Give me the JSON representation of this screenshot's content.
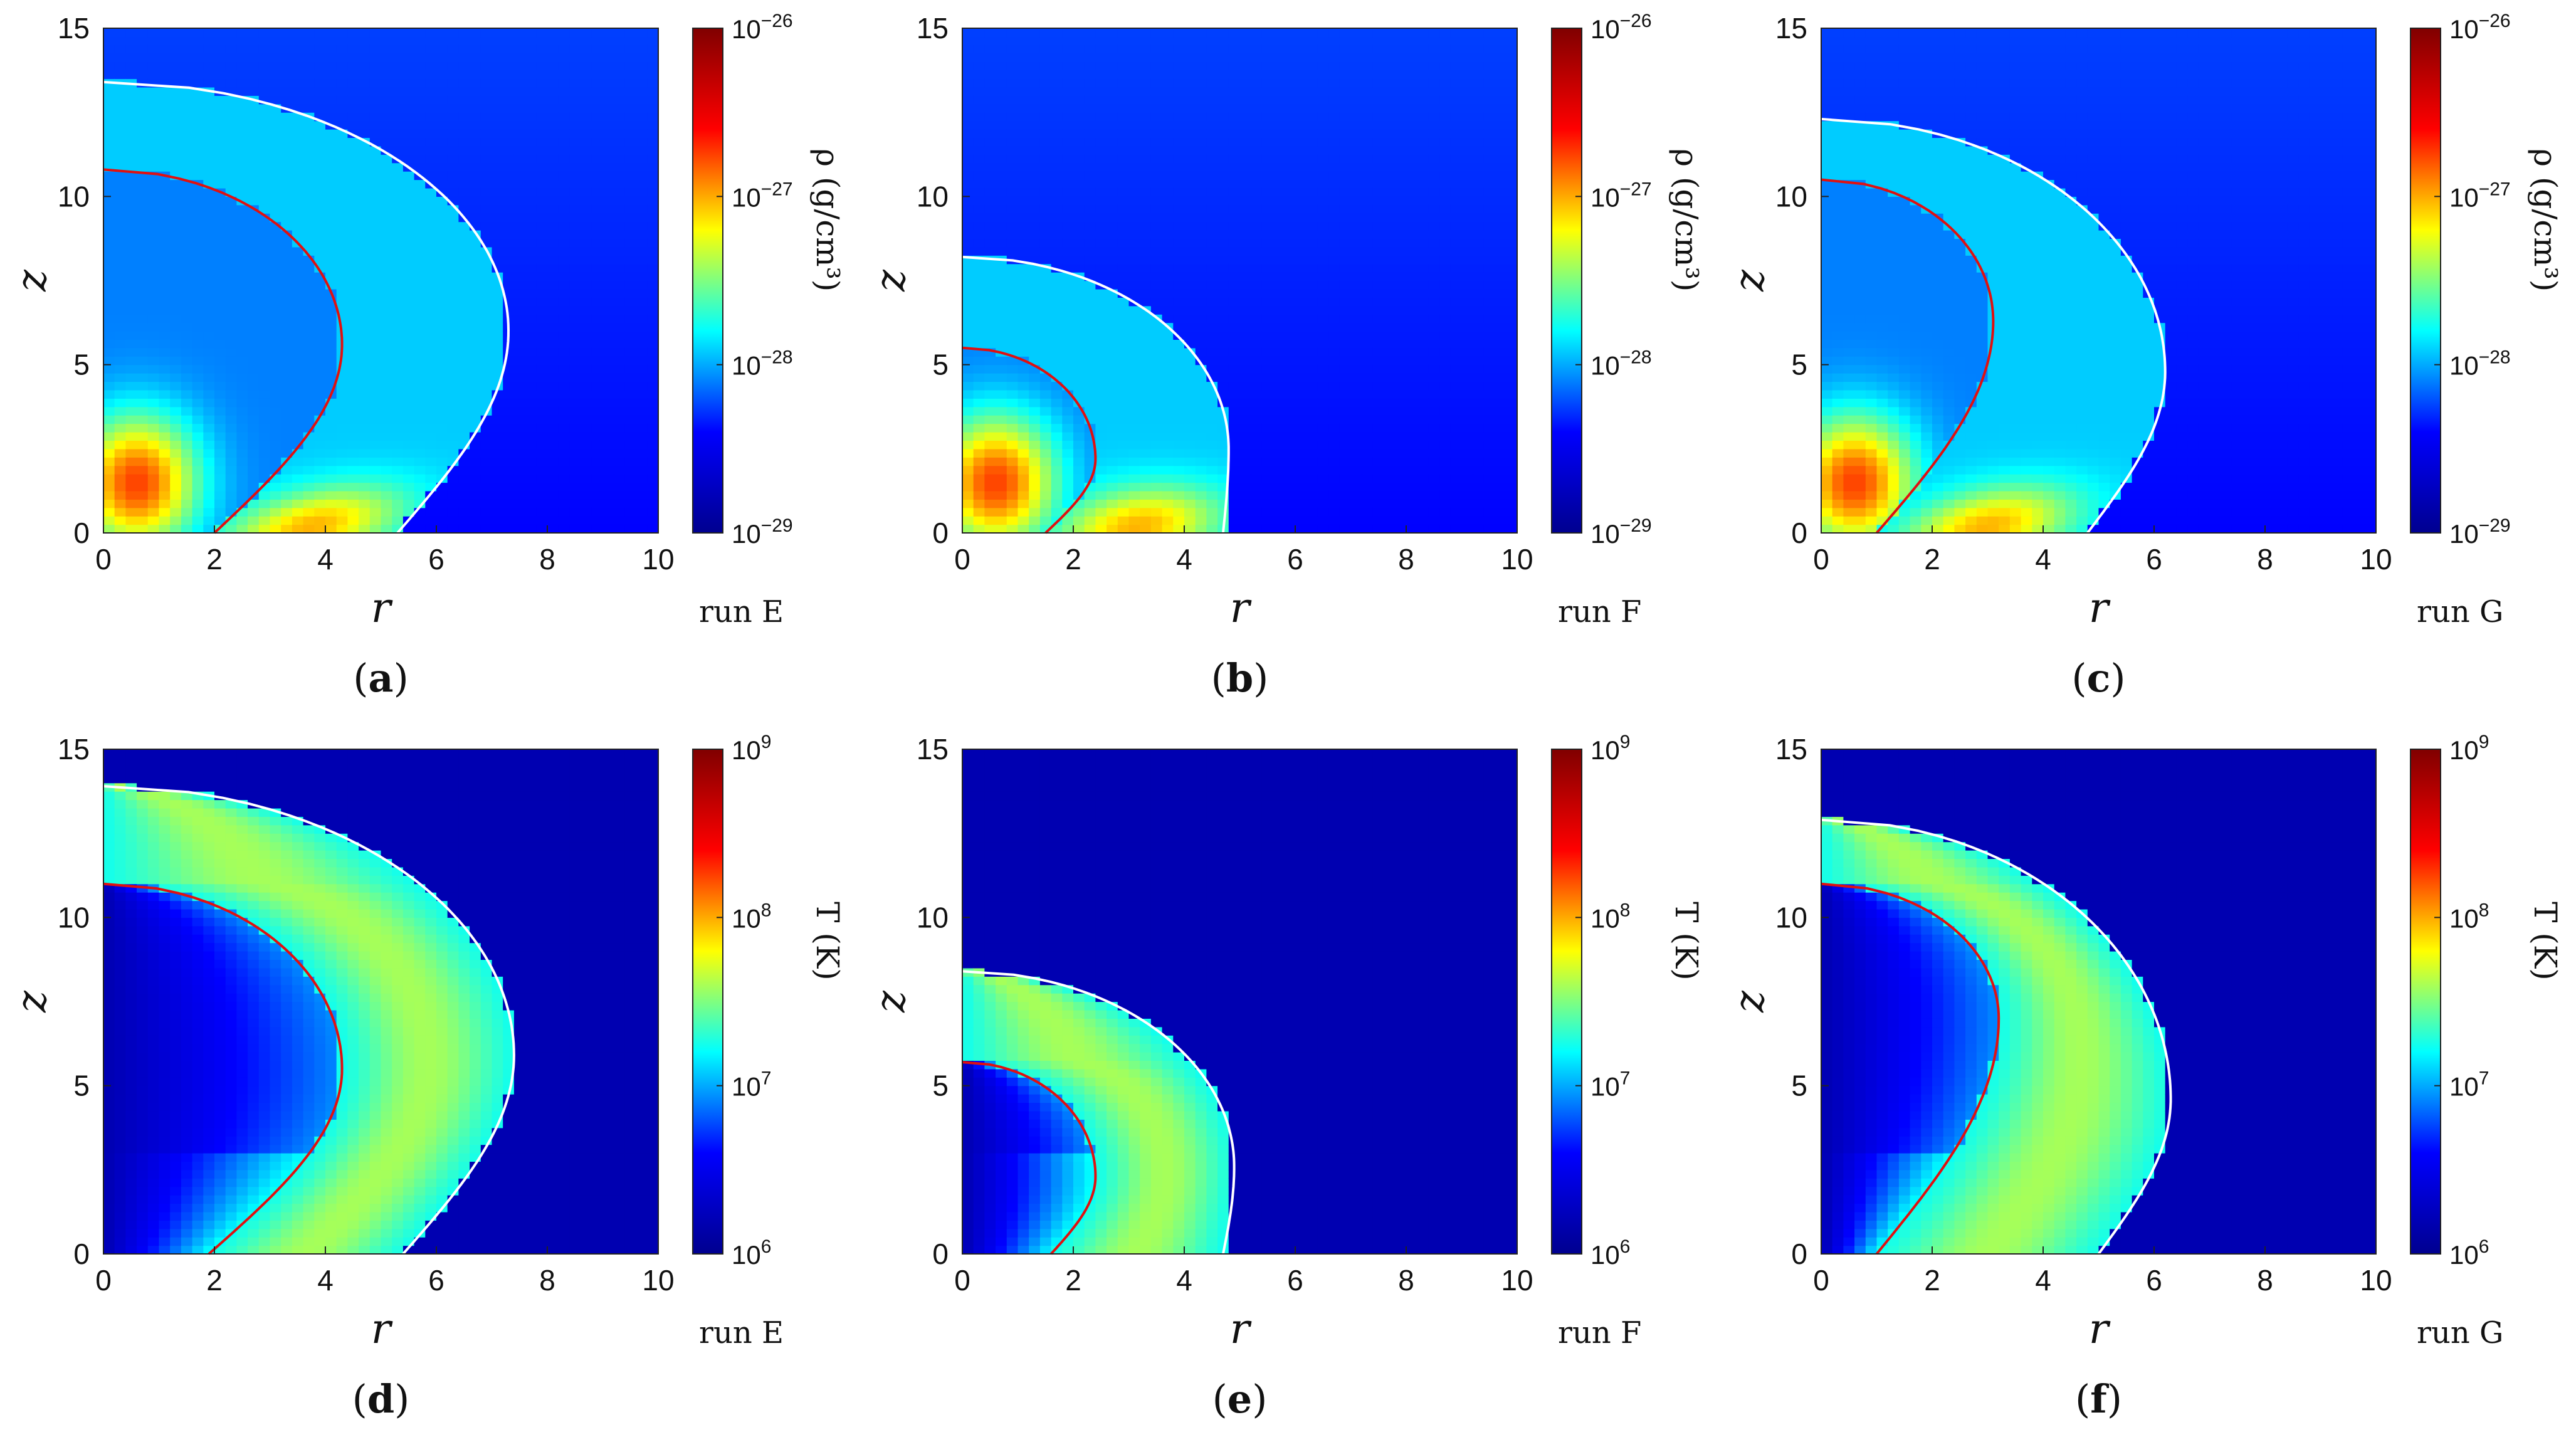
{
  "chart_data": [
    {
      "id": "a",
      "type": "heatmap",
      "caption": "a",
      "run_label": "run E",
      "quantity": "rho",
      "colorbar_label": "ρ (g/cm³)",
      "colorbar_ticks": [
        {
          "base": "10",
          "exp": "−26"
        },
        {
          "base": "10",
          "exp": "−27"
        },
        {
          "base": "10",
          "exp": "−28"
        },
        {
          "base": "10",
          "exp": "−29"
        }
      ],
      "clim_log10": [
        -29,
        -26
      ],
      "xlabel": "r",
      "ylabel": "z",
      "xlim": [
        0,
        10
      ],
      "ylim": [
        0,
        15
      ],
      "xticks": [
        "0",
        "2",
        "4",
        "6",
        "8",
        "10"
      ],
      "yticks": [
        "0",
        "5",
        "10",
        "15"
      ],
      "shock_white_bow": {
        "r0": 7.3,
        "z0": 13.4,
        "zc": 6.0,
        "r_base": 5.3
      },
      "contact_red": {
        "r0": 4.3,
        "z0": 10.8,
        "zc": 5.6,
        "r_base": 2.0
      },
      "colormap": [
        "#00008f",
        "#0000ff",
        "#00ffff",
        "#ffff00",
        "#ff0000",
        "#800000"
      ]
    },
    {
      "id": "b",
      "type": "heatmap",
      "caption": "b",
      "run_label": "run F",
      "quantity": "rho",
      "colorbar_label": "ρ (g/cm³)",
      "colorbar_ticks": [
        {
          "base": "10",
          "exp": "−26"
        },
        {
          "base": "10",
          "exp": "−27"
        },
        {
          "base": "10",
          "exp": "−28"
        },
        {
          "base": "10",
          "exp": "−29"
        }
      ],
      "clim_log10": [
        -29,
        -26
      ],
      "xlabel": "r",
      "ylabel": "z",
      "xlim": [
        0,
        10
      ],
      "ylim": [
        0,
        15
      ],
      "xticks": [
        "0",
        "2",
        "4",
        "6",
        "8",
        "10"
      ],
      "yticks": [
        "0",
        "5",
        "10",
        "15"
      ],
      "shock_white_bow": {
        "r0": 4.8,
        "z0": 8.2,
        "zc": 2.5,
        "r_base": 4.7
      },
      "contact_red": {
        "r0": 2.4,
        "z0": 5.5,
        "zc": 2.2,
        "r_base": 1.5
      },
      "colormap": [
        "#00008f",
        "#0000ff",
        "#00ffff",
        "#ffff00",
        "#ff0000",
        "#800000"
      ]
    },
    {
      "id": "c",
      "type": "heatmap",
      "caption": "c",
      "run_label": "run G",
      "quantity": "rho",
      "colorbar_label": "ρ (g/cm³)",
      "colorbar_ticks": [
        {
          "base": "10",
          "exp": "−26"
        },
        {
          "base": "10",
          "exp": "−27"
        },
        {
          "base": "10",
          "exp": "−28"
        },
        {
          "base": "10",
          "exp": "−29"
        }
      ],
      "clim_log10": [
        -29,
        -26
      ],
      "xlabel": "r",
      "ylabel": "z",
      "xlim": [
        0,
        10
      ],
      "ylim": [
        0,
        15
      ],
      "xticks": [
        "0",
        "2",
        "4",
        "6",
        "8",
        "10"
      ],
      "yticks": [
        "0",
        "5",
        "10",
        "15"
      ],
      "shock_white_bow": {
        "r0": 6.2,
        "z0": 12.3,
        "zc": 4.8,
        "r_base": 4.8
      },
      "contact_red": {
        "r0": 3.1,
        "z0": 10.5,
        "zc": 6.3,
        "r_base": 1.0
      },
      "colormap": [
        "#00008f",
        "#0000ff",
        "#00ffff",
        "#ffff00",
        "#ff0000",
        "#800000"
      ]
    },
    {
      "id": "d",
      "type": "heatmap",
      "caption": "d",
      "run_label": "run E",
      "quantity": "T",
      "colorbar_label": "T (K)",
      "colorbar_ticks": [
        {
          "base": "10",
          "exp": "9"
        },
        {
          "base": "10",
          "exp": "8"
        },
        {
          "base": "10",
          "exp": "7"
        },
        {
          "base": "10",
          "exp": "6"
        }
      ],
      "clim_log10": [
        6,
        9
      ],
      "xlabel": "r",
      "ylabel": "z",
      "xlim": [
        0,
        10
      ],
      "ylim": [
        0,
        15
      ],
      "xticks": [
        "0",
        "2",
        "4",
        "6",
        "8",
        "10"
      ],
      "yticks": [
        "0",
        "5",
        "10",
        "15"
      ],
      "shock_white_bow": {
        "r0": 7.4,
        "z0": 13.9,
        "zc": 5.9,
        "r_base": 5.4
      },
      "contact_red": {
        "r0": 4.3,
        "z0": 11.0,
        "zc": 5.5,
        "r_base": 1.9
      },
      "colormap": [
        "#00008f",
        "#0000ff",
        "#00ffff",
        "#ffff00",
        "#ff0000",
        "#800000"
      ]
    },
    {
      "id": "e",
      "type": "heatmap",
      "caption": "e",
      "run_label": "run F",
      "quantity": "T",
      "colorbar_label": "T (K)",
      "colorbar_ticks": [
        {
          "base": "10",
          "exp": "9"
        },
        {
          "base": "10",
          "exp": "8"
        },
        {
          "base": "10",
          "exp": "7"
        },
        {
          "base": "10",
          "exp": "6"
        }
      ],
      "clim_log10": [
        6,
        9
      ],
      "xlabel": "r",
      "ylabel": "z",
      "xlim": [
        0,
        10
      ],
      "ylim": [
        0,
        15
      ],
      "xticks": [
        "0",
        "2",
        "4",
        "6",
        "8",
        "10"
      ],
      "yticks": [
        "0",
        "5",
        "10",
        "15"
      ],
      "shock_white_bow": {
        "r0": 4.9,
        "z0": 8.4,
        "zc": 2.6,
        "r_base": 4.7
      },
      "contact_red": {
        "r0": 2.4,
        "z0": 5.7,
        "zc": 2.3,
        "r_base": 1.6
      },
      "colormap": [
        "#00008f",
        "#0000ff",
        "#00ffff",
        "#ffff00",
        "#ff0000",
        "#800000"
      ]
    },
    {
      "id": "f",
      "type": "heatmap",
      "caption": "f",
      "run_label": "run G",
      "quantity": "T",
      "colorbar_label": "T (K)",
      "colorbar_ticks": [
        {
          "base": "10",
          "exp": "9"
        },
        {
          "base": "10",
          "exp": "8"
        },
        {
          "base": "10",
          "exp": "7"
        },
        {
          "base": "10",
          "exp": "6"
        }
      ],
      "clim_log10": [
        6,
        9
      ],
      "xlabel": "r",
      "ylabel": "z",
      "xlim": [
        0,
        10
      ],
      "ylim": [
        0,
        15
      ],
      "xticks": [
        "0",
        "2",
        "4",
        "6",
        "8",
        "10"
      ],
      "yticks": [
        "0",
        "5",
        "10",
        "15"
      ],
      "shock_white_bow": {
        "r0": 6.3,
        "z0": 12.9,
        "zc": 4.6,
        "r_base": 5.0
      },
      "contact_red": {
        "r0": 3.2,
        "z0": 11.0,
        "zc": 7.0,
        "r_base": 1.0
      },
      "colormap": [
        "#00008f",
        "#0000ff",
        "#00ffff",
        "#ffff00",
        "#ff0000",
        "#800000"
      ]
    }
  ]
}
